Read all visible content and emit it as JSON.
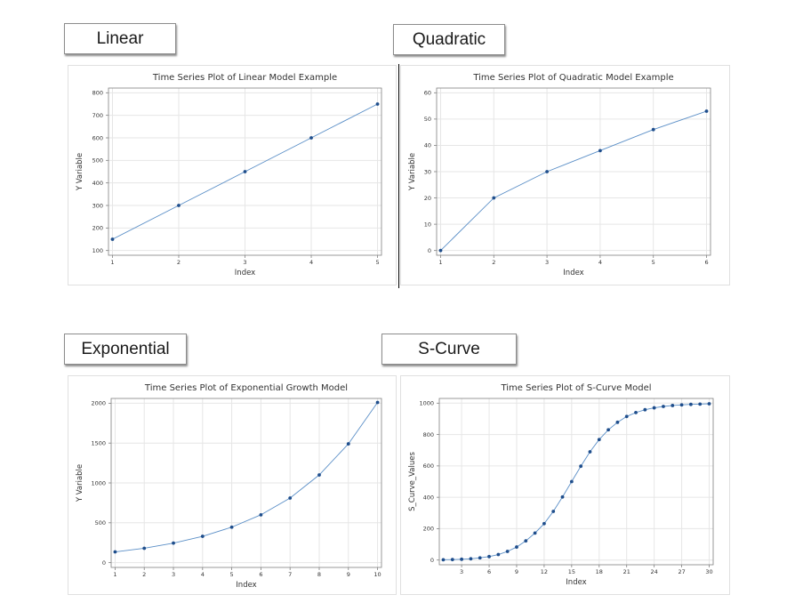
{
  "labels": {
    "linear": "Linear",
    "quadratic": "Quadratic",
    "exponential": "Exponential",
    "scurve": "S-Curve"
  },
  "colors": {
    "line": "#5b8fc7",
    "marker": "#1f4e8c",
    "grid": "#e6e6e6",
    "axis": "#808080"
  },
  "chart_data": [
    {
      "id": "linear",
      "type": "line",
      "title": "Time Series Plot of Linear Model Example",
      "xlabel": "Index",
      "ylabel": "Y Variable",
      "x": [
        1,
        2,
        3,
        4,
        5
      ],
      "values": [
        150,
        300,
        450,
        600,
        750
      ],
      "xticks": [
        1,
        2,
        3,
        4,
        5
      ],
      "yticks": [
        100,
        200,
        300,
        400,
        500,
        600,
        700,
        800
      ],
      "xlim": [
        1,
        5
      ],
      "ylim": [
        100,
        800
      ],
      "grid": true
    },
    {
      "id": "quadratic",
      "type": "line",
      "title": "Time Series Plot of Quadratic Model Example",
      "xlabel": "Index",
      "ylabel": "Y Variable",
      "x": [
        1,
        2,
        3,
        4,
        5,
        6
      ],
      "values": [
        0,
        20,
        30,
        38,
        46,
        53
      ],
      "xticks": [
        1,
        2,
        3,
        4,
        5,
        6
      ],
      "yticks": [
        0,
        10,
        20,
        30,
        40,
        50,
        60
      ],
      "xlim": [
        1,
        6
      ],
      "ylim": [
        0,
        60
      ],
      "grid": true
    },
    {
      "id": "exponential",
      "type": "line",
      "title": "Time Series Plot of Exponential Growth Model",
      "xlabel": "Index",
      "ylabel": "Y Variable",
      "x": [
        1,
        2,
        3,
        4,
        5,
        6,
        7,
        8,
        9,
        10
      ],
      "values": [
        135,
        180,
        245,
        330,
        445,
        600,
        810,
        1100,
        1490,
        2010
      ],
      "xticks": [
        1,
        2,
        3,
        4,
        5,
        6,
        7,
        8,
        9,
        10
      ],
      "yticks": [
        0,
        500,
        1000,
        1500,
        2000
      ],
      "xlim": [
        1,
        10
      ],
      "ylim": [
        0,
        2000
      ],
      "grid": true
    },
    {
      "id": "scurve",
      "type": "line",
      "title": "Time Series Plot of S-Curve Model",
      "xlabel": "Index",
      "ylabel": "S_Curve_Values",
      "x": [
        1,
        2,
        3,
        4,
        5,
        6,
        7,
        8,
        9,
        10,
        11,
        12,
        13,
        14,
        15,
        16,
        17,
        18,
        19,
        20,
        21,
        22,
        23,
        24,
        25,
        26,
        27,
        28,
        29,
        30
      ],
      "values": [
        2,
        3,
        5,
        8,
        14,
        22,
        35,
        55,
        83,
        122,
        172,
        232,
        310,
        402,
        500,
        598,
        690,
        768,
        830,
        878,
        915,
        940,
        958,
        970,
        979,
        985,
        989,
        992,
        994,
        996
      ],
      "xticks": [
        3,
        6,
        9,
        12,
        15,
        18,
        21,
        24,
        27,
        30
      ],
      "yticks": [
        0,
        200,
        400,
        600,
        800,
        1000
      ],
      "xlim": [
        1,
        30
      ],
      "ylim": [
        0,
        1000
      ],
      "grid": true
    }
  ]
}
